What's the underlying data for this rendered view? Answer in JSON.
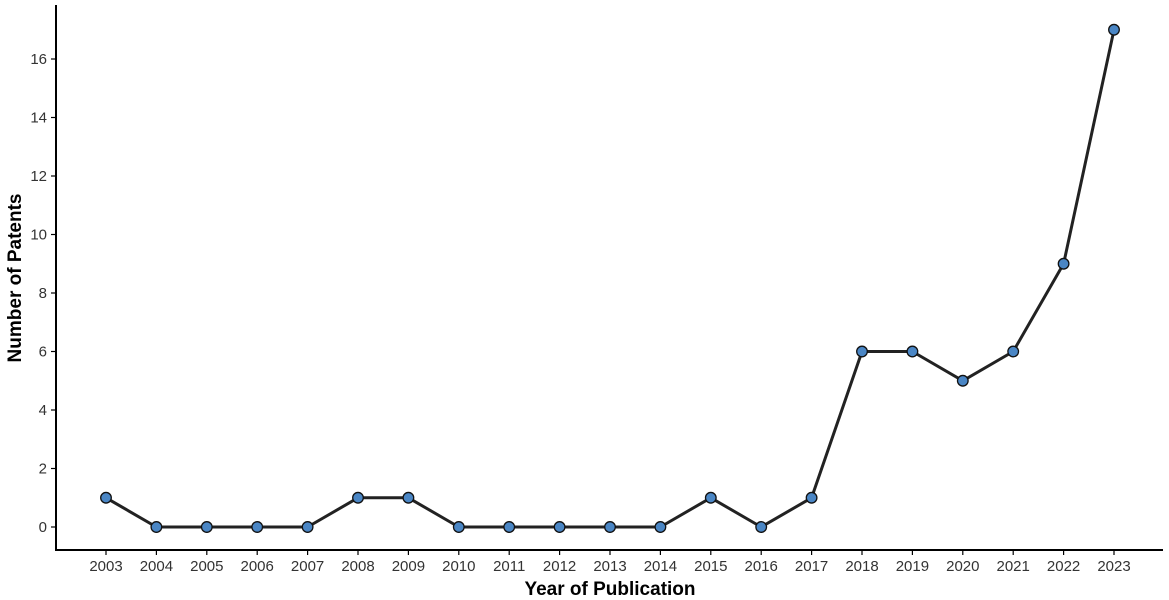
{
  "chart_data": {
    "type": "line",
    "title": "",
    "xlabel": "Year of Publication",
    "ylabel": "Number of Patents",
    "x": [
      "2003",
      "2004",
      "2005",
      "2006",
      "2007",
      "2008",
      "2009",
      "2010",
      "2011",
      "2012",
      "2013",
      "2014",
      "2015",
      "2016",
      "2017",
      "2018",
      "2019",
      "2020",
      "2021",
      "2022",
      "2023"
    ],
    "series": [
      {
        "values": [
          1,
          0,
          0,
          0,
          0,
          1,
          1,
          0,
          0,
          0,
          0,
          0,
          1,
          0,
          1,
          6,
          6,
          5,
          6,
          9,
          17
        ]
      }
    ],
    "ylim": [
      -0.8,
      17.8
    ],
    "yticks": [
      0,
      2,
      4,
      6,
      8,
      10,
      12,
      14,
      16
    ],
    "grid": false,
    "legend": "none"
  },
  "colors": {
    "line": "#222222",
    "marker_fill": "#4a86c5",
    "marker_stroke": "#111111",
    "axis": "#000000"
  }
}
